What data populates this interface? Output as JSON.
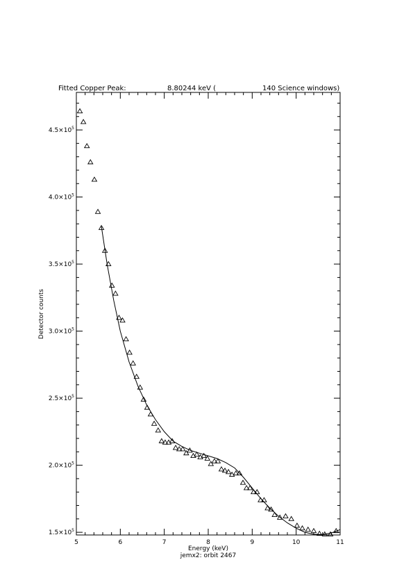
{
  "chart_data": {
    "type": "scatter",
    "title": {
      "prefix": "Fitted Copper Peak:",
      "energy": "8.80244 keV (",
      "windows": "140 Science windows)"
    },
    "xlabel": "Energy (keV)",
    "ylabel": "Detector counts",
    "subtitle": "jemx2: orbit 2467",
    "xlim": [
      5,
      11
    ],
    "ylim": [
      148000,
      478000
    ],
    "x_ticks": [
      {
        "value": 5,
        "label": "5"
      },
      {
        "value": 6,
        "label": "6"
      },
      {
        "value": 7,
        "label": "7"
      },
      {
        "value": 8,
        "label": "8"
      },
      {
        "value": 9,
        "label": "9"
      },
      {
        "value": 10,
        "label": "10"
      },
      {
        "value": 11,
        "label": "11"
      }
    ],
    "y_ticks": [
      {
        "value": 150000,
        "mantissa": "1.5×10",
        "exp": "5"
      },
      {
        "value": 200000,
        "mantissa": "2.0×10",
        "exp": "5"
      },
      {
        "value": 250000,
        "mantissa": "2.5×10",
        "exp": "5"
      },
      {
        "value": 300000,
        "mantissa": "3.0×10",
        "exp": "5"
      },
      {
        "value": 350000,
        "mantissa": "3.5×10",
        "exp": "5"
      },
      {
        "value": 400000,
        "mantissa": "4.0×10",
        "exp": "5"
      },
      {
        "value": 450000,
        "mantissa": "4.5×10",
        "exp": "5"
      }
    ],
    "series": [
      {
        "kind": "points",
        "marker": "triangle",
        "x": [
          5.08,
          5.16,
          5.24,
          5.32,
          5.41,
          5.49,
          5.57,
          5.65,
          5.73,
          5.81,
          5.89,
          5.97,
          6.05,
          6.13,
          6.21,
          6.29,
          6.37,
          6.45,
          6.53,
          6.61,
          6.69,
          6.77,
          6.86,
          6.94,
          7.02,
          7.1,
          7.18,
          7.26,
          7.34,
          7.42,
          7.5,
          7.58,
          7.66,
          7.74,
          7.82,
          7.9,
          7.98,
          8.06,
          8.14,
          8.22,
          8.3,
          8.38,
          8.46,
          8.54,
          8.63,
          8.71,
          8.79,
          8.87,
          8.95,
          9.03,
          9.11,
          9.19,
          9.27,
          9.35,
          9.43,
          9.51,
          9.63,
          9.76,
          9.89,
          10.02,
          10.14,
          10.27,
          10.4,
          10.53,
          10.65,
          10.78,
          10.91
        ],
        "y": [
          464000,
          456000,
          438000,
          426000,
          413000,
          389000,
          377000,
          360000,
          350000,
          334000,
          328000,
          310000,
          308000,
          294000,
          284000,
          276000,
          266000,
          258000,
          249000,
          243000,
          238000,
          231000,
          226000,
          218000,
          217000,
          217000,
          218000,
          213000,
          212000,
          212000,
          209000,
          211000,
          207000,
          208000,
          206000,
          207000,
          205000,
          201000,
          203000,
          203000,
          197000,
          196000,
          195000,
          193000,
          194000,
          194000,
          187000,
          183000,
          183000,
          180000,
          180000,
          174000,
          174000,
          168000,
          167000,
          163000,
          161000,
          162000,
          160000,
          155000,
          153000,
          152000,
          151000,
          149000,
          148500,
          148500,
          151000
        ]
      },
      {
        "kind": "line",
        "x": [
          5.57,
          5.7,
          5.85,
          6.0,
          6.2,
          6.4,
          6.6,
          6.8,
          7.0,
          7.2,
          7.4,
          7.6,
          7.8,
          8.0,
          8.2,
          8.4,
          8.6,
          8.8,
          9.0,
          9.2,
          9.4,
          9.6,
          9.8,
          10.0,
          10.2,
          10.4,
          10.6,
          10.8,
          11.0
        ],
        "y": [
          378000,
          350000,
          323000,
          300000,
          277000,
          259000,
          245000,
          234000,
          225000,
          218000,
          214000,
          211000,
          209000,
          207000,
          205000,
          202000,
          198000,
          191000,
          183000,
          175000,
          168000,
          162000,
          157000,
          153000,
          150000,
          148500,
          148300,
          149500,
          152000
        ]
      }
    ]
  }
}
